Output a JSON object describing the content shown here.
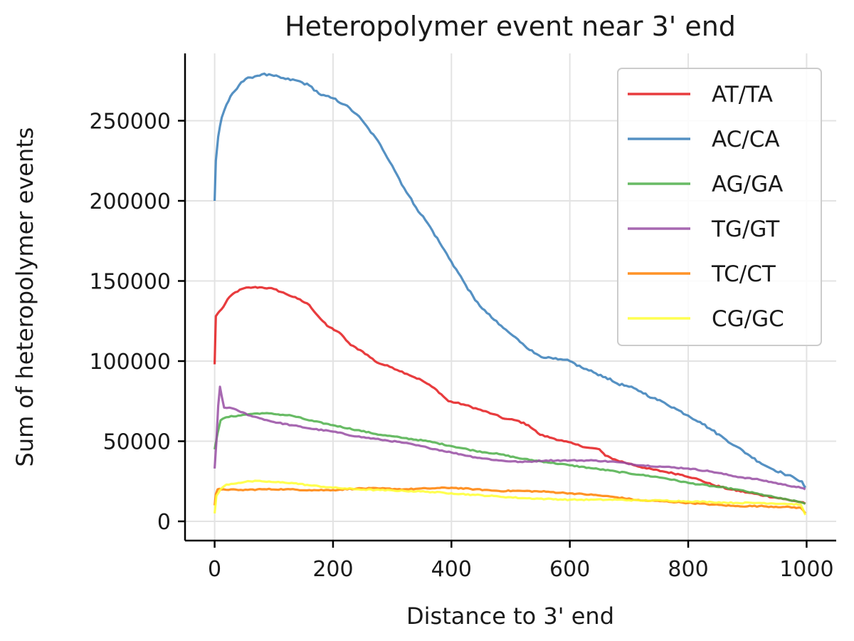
{
  "chart_data": {
    "type": "line",
    "title": "Heteropolymer event near 3' end",
    "xlabel": "Distance to 3' end",
    "ylabel": "Sum of heteropolymer events",
    "xlim": [
      -50,
      1050
    ],
    "ylim": [
      -12000,
      292000
    ],
    "xticks": [
      0,
      200,
      400,
      600,
      800,
      1000
    ],
    "yticks": [
      0,
      50000,
      100000,
      150000,
      200000,
      250000
    ],
    "grid": true,
    "legend_position": "top-right",
    "series": [
      {
        "name": "AT/TA",
        "color": "#e41a1c",
        "points": [
          [
            0,
            98000
          ],
          [
            2,
            128000
          ],
          [
            8,
            131000
          ],
          [
            15,
            134000
          ],
          [
            25,
            140000
          ],
          [
            35,
            143000
          ],
          [
            50,
            145500
          ],
          [
            65,
            146000
          ],
          [
            80,
            146000
          ],
          [
            100,
            145000
          ],
          [
            120,
            142000
          ],
          [
            140,
            139000
          ],
          [
            160,
            135000
          ],
          [
            175,
            128000
          ],
          [
            190,
            122000
          ],
          [
            210,
            118000
          ],
          [
            230,
            110000
          ],
          [
            250,
            106000
          ],
          [
            275,
            99000
          ],
          [
            300,
            96000
          ],
          [
            325,
            92000
          ],
          [
            350,
            88000
          ],
          [
            375,
            82000
          ],
          [
            395,
            75000
          ],
          [
            420,
            73000
          ],
          [
            445,
            70000
          ],
          [
            470,
            67000
          ],
          [
            490,
            64000
          ],
          [
            510,
            63000
          ],
          [
            530,
            60000
          ],
          [
            550,
            54000
          ],
          [
            570,
            52000
          ],
          [
            590,
            50000
          ],
          [
            610,
            48000
          ],
          [
            630,
            46000
          ],
          [
            650,
            45000
          ],
          [
            660,
            41000
          ],
          [
            680,
            38000
          ],
          [
            700,
            36000
          ],
          [
            730,
            33000
          ],
          [
            760,
            31000
          ],
          [
            790,
            29000
          ],
          [
            810,
            27000
          ],
          [
            840,
            23000
          ],
          [
            870,
            20000
          ],
          [
            900,
            18000
          ],
          [
            930,
            16000
          ],
          [
            960,
            14000
          ],
          [
            990,
            12000
          ],
          [
            998,
            11000
          ]
        ]
      },
      {
        "name": "AC/CA",
        "color": "#377eb8",
        "points": [
          [
            0,
            200000
          ],
          [
            2,
            225000
          ],
          [
            6,
            240000
          ],
          [
            12,
            252000
          ],
          [
            20,
            260000
          ],
          [
            30,
            267000
          ],
          [
            45,
            274000
          ],
          [
            60,
            277000
          ],
          [
            80,
            279000
          ],
          [
            100,
            278000
          ],
          [
            120,
            276000
          ],
          [
            140,
            275000
          ],
          [
            160,
            272000
          ],
          [
            180,
            266000
          ],
          [
            200,
            264000
          ],
          [
            220,
            260000
          ],
          [
            240,
            254000
          ],
          [
            260,
            245000
          ],
          [
            280,
            235000
          ],
          [
            300,
            222000
          ],
          [
            320,
            208000
          ],
          [
            340,
            196000
          ],
          [
            360,
            186000
          ],
          [
            380,
            174000
          ],
          [
            400,
            162000
          ],
          [
            420,
            150000
          ],
          [
            440,
            138000
          ],
          [
            460,
            130000
          ],
          [
            480,
            123000
          ],
          [
            500,
            117000
          ],
          [
            520,
            111000
          ],
          [
            540,
            105000
          ],
          [
            560,
            102000
          ],
          [
            580,
            101000
          ],
          [
            600,
            100000
          ],
          [
            620,
            96000
          ],
          [
            640,
            93000
          ],
          [
            660,
            90000
          ],
          [
            680,
            86000
          ],
          [
            700,
            84000
          ],
          [
            720,
            81000
          ],
          [
            740,
            77000
          ],
          [
            760,
            74000
          ],
          [
            780,
            70000
          ],
          [
            800,
            66000
          ],
          [
            820,
            62000
          ],
          [
            840,
            57000
          ],
          [
            860,
            52000
          ],
          [
            880,
            47000
          ],
          [
            900,
            42000
          ],
          [
            920,
            37000
          ],
          [
            940,
            33000
          ],
          [
            960,
            30000
          ],
          [
            980,
            27000
          ],
          [
            992,
            25000
          ],
          [
            998,
            21000
          ]
        ]
      },
      {
        "name": "AG/GA",
        "color": "#4daf4a",
        "points": [
          [
            0,
            45000
          ],
          [
            5,
            55000
          ],
          [
            10,
            63000
          ],
          [
            20,
            65000
          ],
          [
            40,
            66000
          ],
          [
            60,
            67000
          ],
          [
            80,
            67500
          ],
          [
            100,
            67000
          ],
          [
            130,
            66000
          ],
          [
            160,
            63000
          ],
          [
            200,
            60000
          ],
          [
            240,
            57000
          ],
          [
            280,
            54000
          ],
          [
            320,
            52000
          ],
          [
            360,
            50000
          ],
          [
            400,
            47000
          ],
          [
            440,
            44000
          ],
          [
            480,
            42000
          ],
          [
            520,
            39000
          ],
          [
            560,
            37000
          ],
          [
            600,
            35000
          ],
          [
            640,
            33000
          ],
          [
            680,
            31000
          ],
          [
            720,
            29000
          ],
          [
            760,
            27000
          ],
          [
            800,
            24000
          ],
          [
            840,
            22000
          ],
          [
            880,
            20000
          ],
          [
            920,
            17000
          ],
          [
            960,
            14000
          ],
          [
            990,
            12000
          ],
          [
            998,
            11000
          ]
        ]
      },
      {
        "name": "TG/GT",
        "color": "#984ea3",
        "points": [
          [
            0,
            33000
          ],
          [
            3,
            50000
          ],
          [
            6,
            72000
          ],
          [
            9,
            84000
          ],
          [
            12,
            78000
          ],
          [
            16,
            71000
          ],
          [
            25,
            71000
          ],
          [
            40,
            69000
          ],
          [
            60,
            66000
          ],
          [
            80,
            64000
          ],
          [
            100,
            62000
          ],
          [
            130,
            60000
          ],
          [
            160,
            58000
          ],
          [
            200,
            56000
          ],
          [
            240,
            53000
          ],
          [
            280,
            51000
          ],
          [
            320,
            49000
          ],
          [
            360,
            46000
          ],
          [
            400,
            43000
          ],
          [
            440,
            40000
          ],
          [
            480,
            38000
          ],
          [
            520,
            37000
          ],
          [
            560,
            38000
          ],
          [
            600,
            38000
          ],
          [
            640,
            38000
          ],
          [
            680,
            37000
          ],
          [
            720,
            35000
          ],
          [
            760,
            34000
          ],
          [
            800,
            33000
          ],
          [
            840,
            31000
          ],
          [
            880,
            28000
          ],
          [
            920,
            26000
          ],
          [
            960,
            23000
          ],
          [
            990,
            21000
          ],
          [
            998,
            20000
          ]
        ]
      },
      {
        "name": "TC/CT",
        "color": "#ff7f00",
        "points": [
          [
            0,
            10000
          ],
          [
            2,
            17000
          ],
          [
            5,
            20000
          ],
          [
            15,
            20000
          ],
          [
            40,
            19500
          ],
          [
            80,
            20000
          ],
          [
            120,
            20000
          ],
          [
            160,
            19500
          ],
          [
            200,
            19500
          ],
          [
            240,
            20500
          ],
          [
            280,
            20500
          ],
          [
            320,
            20000
          ],
          [
            360,
            20500
          ],
          [
            400,
            21000
          ],
          [
            440,
            20000
          ],
          [
            480,
            19000
          ],
          [
            520,
            19000
          ],
          [
            560,
            18500
          ],
          [
            600,
            17500
          ],
          [
            640,
            16500
          ],
          [
            680,
            15000
          ],
          [
            720,
            13000
          ],
          [
            760,
            12500
          ],
          [
            800,
            11500
          ],
          [
            840,
            10500
          ],
          [
            880,
            9500
          ],
          [
            920,
            9500
          ],
          [
            960,
            9000
          ],
          [
            990,
            8500
          ],
          [
            998,
            5000
          ]
        ]
      },
      {
        "name": "CG/GC",
        "color": "#ffff33",
        "points": [
          [
            0,
            5000
          ],
          [
            3,
            16000
          ],
          [
            10,
            20000
          ],
          [
            20,
            23000
          ],
          [
            40,
            24000
          ],
          [
            60,
            25000
          ],
          [
            80,
            25000
          ],
          [
            100,
            24500
          ],
          [
            130,
            24000
          ],
          [
            160,
            22500
          ],
          [
            200,
            21000
          ],
          [
            240,
            20000
          ],
          [
            280,
            19500
          ],
          [
            320,
            19000
          ],
          [
            360,
            18500
          ],
          [
            400,
            17500
          ],
          [
            440,
            16500
          ],
          [
            480,
            15500
          ],
          [
            520,
            14500
          ],
          [
            560,
            14000
          ],
          [
            600,
            13500
          ],
          [
            640,
            13500
          ],
          [
            680,
            13500
          ],
          [
            720,
            13000
          ],
          [
            760,
            13000
          ],
          [
            800,
            12500
          ],
          [
            840,
            12000
          ],
          [
            880,
            11500
          ],
          [
            920,
            11500
          ],
          [
            960,
            11000
          ],
          [
            990,
            10500
          ],
          [
            998,
            4000
          ]
        ]
      }
    ]
  }
}
